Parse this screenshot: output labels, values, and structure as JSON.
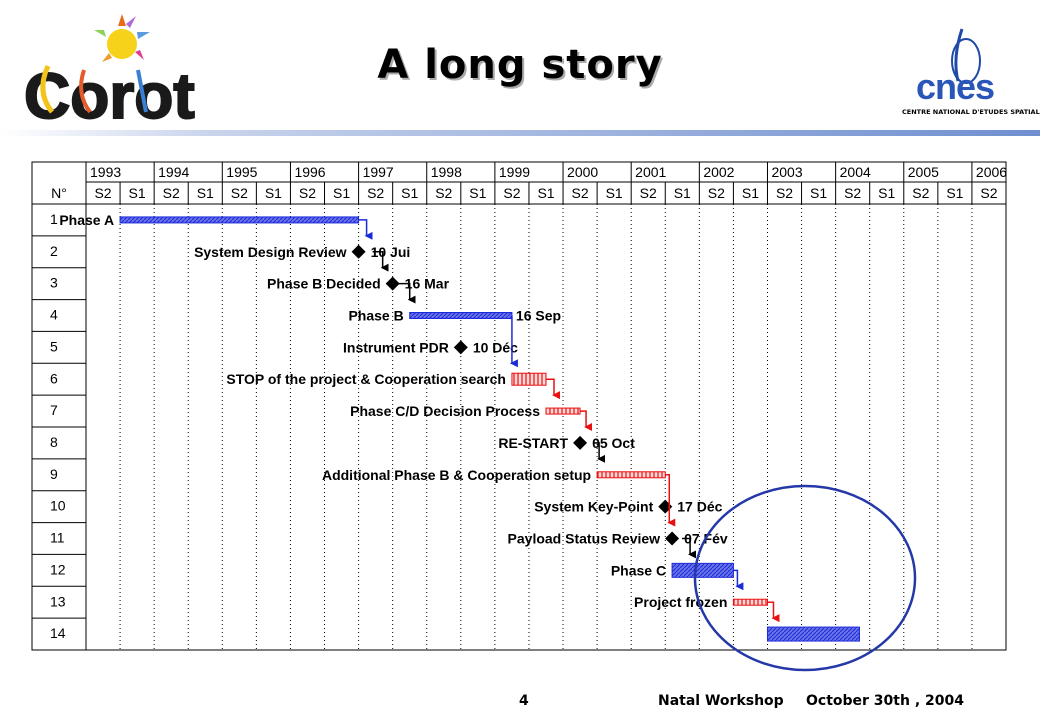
{
  "slide": {
    "title": "A long story",
    "page_number": "4",
    "footer_event": "Natal Workshop",
    "footer_date": "October 30th , 2004",
    "left_logo_text": "Corot",
    "right_logo_text": "cnes",
    "right_logo_caption": "CENTRE NATIONAL D'ETUDES SPATIALES"
  },
  "gantt": {
    "number_header": "N°",
    "years": [
      "1993",
      "1994",
      "1995",
      "1996",
      "1997",
      "1998",
      "1999",
      "2000",
      "2001",
      "2002",
      "2003",
      "2004",
      "2005",
      "2006"
    ],
    "half_labels": [
      "S2",
      "S1",
      "S2",
      "S1",
      "S2",
      "S1",
      "S2",
      "S1",
      "S2",
      "S1",
      "S2",
      "S1",
      "S2",
      "S1",
      "S2",
      "S1",
      "S2",
      "S1",
      "S2",
      "S1",
      "S2",
      "S1",
      "S2",
      "S1",
      "S2",
      "S1",
      "S2"
    ],
    "rows": [
      "1",
      "2",
      "3",
      "4",
      "5",
      "6",
      "7",
      "8",
      "9",
      "10",
      "11",
      "12",
      "13",
      "14"
    ],
    "tasks": [
      {
        "name": "Phase A",
        "kind": "bar",
        "color": "blue",
        "start": 1994.0,
        "end": 1997.5,
        "row": 1
      },
      {
        "name": "System Design Review",
        "kind": "milestone",
        "at": 1997.5,
        "date": "10 Jui",
        "row": 2
      },
      {
        "name": "Phase B Decided",
        "kind": "milestone",
        "at": 1998.0,
        "date": "16 Mar",
        "row": 3
      },
      {
        "name": "Phase B",
        "kind": "bar",
        "color": "blue",
        "start": 1998.25,
        "end": 1999.75,
        "date": "16 Sep",
        "row": 4
      },
      {
        "name": "Instrument PDR",
        "kind": "milestone",
        "at": 1999.0,
        "date": "10 Déc",
        "row": 5
      },
      {
        "name": "STOP of the project & Cooperation search",
        "kind": "bar",
        "color": "red",
        "start": 1999.75,
        "end": 2000.25,
        "row": 6
      },
      {
        "name": "Phase C/D Decision Process",
        "kind": "bar",
        "color": "red",
        "start": 2000.25,
        "end": 2000.75,
        "row": 7
      },
      {
        "name": "RE-START",
        "kind": "milestone",
        "at": 2000.75,
        "date": "05 Oct",
        "row": 8
      },
      {
        "name": "Additional Phase B & Cooperation setup",
        "kind": "bar",
        "color": "red",
        "start": 2001.0,
        "end": 2002.0,
        "row": 9
      },
      {
        "name": "System Key-Point",
        "kind": "milestone",
        "at": 2002.0,
        "date": "17 Déc",
        "row": 10
      },
      {
        "name": "Payload Status Review",
        "kind": "milestone",
        "at": 2002.1,
        "date": "07 Fév",
        "row": 11
      },
      {
        "name": "Phase C",
        "kind": "bar",
        "color": "blue",
        "start": 2002.1,
        "end": 2003.0,
        "row": 12
      },
      {
        "name": "Project frozen",
        "kind": "bar",
        "color": "red",
        "start": 2003.0,
        "end": 2003.5,
        "row": 13
      },
      {
        "name": "",
        "kind": "bar",
        "color": "blue",
        "start": 2003.5,
        "end": 2004.85,
        "row": 14
      }
    ],
    "colors": {
      "blue": "#1c2bd8",
      "blue_fill": "#6a72e8",
      "red": "#e81010",
      "black": "#000000",
      "circle": "#2438a8"
    }
  }
}
